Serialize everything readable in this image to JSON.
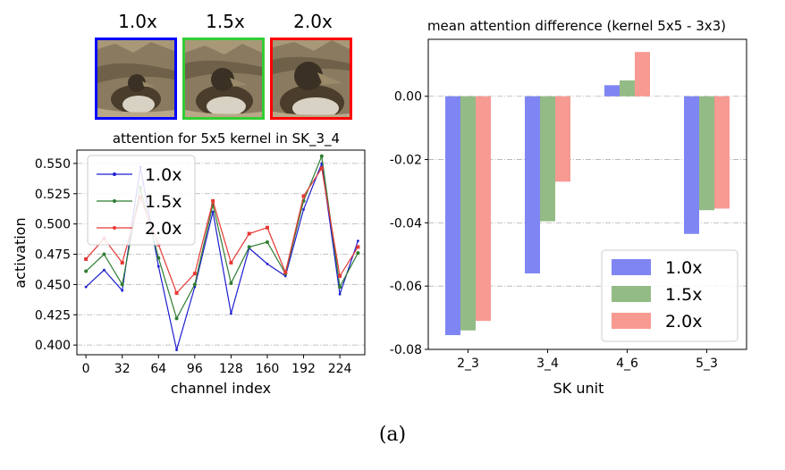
{
  "thumbnails": [
    {
      "label": "1.0x",
      "border_color": "#0000ff"
    },
    {
      "label": "1.5x",
      "border_color": "#33cc33"
    },
    {
      "label": "2.0x",
      "border_color": "#ff0000"
    }
  ],
  "figure_caption": "(a)",
  "chart_data": [
    {
      "type": "line",
      "title": "attention for 5x5 kernel in SK_3_4",
      "xlabel": "channel index",
      "ylabel": "activation",
      "xticks": [
        "0",
        "32",
        "64",
        "96",
        "128",
        "160",
        "192",
        "224"
      ],
      "xtick_values": [
        0,
        32,
        64,
        96,
        128,
        160,
        192,
        224
      ],
      "yticks": [
        "0.400",
        "0.425",
        "0.450",
        "0.475",
        "0.500",
        "0.525",
        "0.550"
      ],
      "ytick_values": [
        0.4,
        0.425,
        0.45,
        0.475,
        0.5,
        0.525,
        0.55
      ],
      "xlim": [
        -8,
        246
      ],
      "ylim": [
        0.392,
        0.561
      ],
      "grid": "horizontal dash-dot",
      "legend_position": "upper-left",
      "x": [
        0,
        16,
        32,
        48,
        64,
        80,
        96,
        112,
        128,
        144,
        160,
        176,
        192,
        208,
        224,
        240
      ],
      "series": [
        {
          "name": "1.0x",
          "color": "#1f1fd0",
          "values": [
            0.448,
            0.462,
            0.445,
            0.547,
            0.465,
            0.396,
            0.448,
            0.51,
            0.426,
            0.48,
            0.467,
            0.457,
            0.512,
            0.55,
            0.442,
            0.486
          ]
        },
        {
          "name": "1.5x",
          "color": "#2e7d32",
          "values": [
            0.461,
            0.475,
            0.45,
            0.53,
            0.472,
            0.422,
            0.45,
            0.516,
            0.451,
            0.481,
            0.485,
            0.459,
            0.519,
            0.556,
            0.448,
            0.476
          ]
        },
        {
          "name": "2.0x",
          "color": "#e53935",
          "values": [
            0.471,
            0.488,
            0.468,
            0.522,
            0.483,
            0.443,
            0.459,
            0.519,
            0.468,
            0.492,
            0.497,
            0.46,
            0.523,
            0.546,
            0.457,
            0.481
          ]
        }
      ]
    },
    {
      "type": "bar",
      "title": "mean attention difference (kernel 5x5 - 3x3)",
      "xlabel": "SK unit",
      "ylabel": "",
      "categories": [
        "2_3",
        "3_4",
        "4_6",
        "5_3"
      ],
      "yticks": [
        "0.00",
        "-0.02",
        "-0.04",
        "-0.06",
        "-0.08"
      ],
      "ytick_values": [
        0.0,
        -0.02,
        -0.04,
        -0.06,
        -0.08
      ],
      "ylim": [
        -0.08,
        0.018
      ],
      "grid": "horizontal dash-dot",
      "legend_position": "lower-right",
      "series": [
        {
          "name": "1.0x",
          "color": "#7f86f3",
          "values": [
            -0.0755,
            -0.056,
            0.0035,
            -0.0435
          ]
        },
        {
          "name": "1.5x",
          "color": "#93bb85",
          "values": [
            -0.074,
            -0.0395,
            0.005,
            -0.036
          ]
        },
        {
          "name": "2.0x",
          "color": "#f79a92",
          "values": [
            -0.071,
            -0.027,
            0.014,
            -0.0355
          ]
        }
      ]
    }
  ]
}
